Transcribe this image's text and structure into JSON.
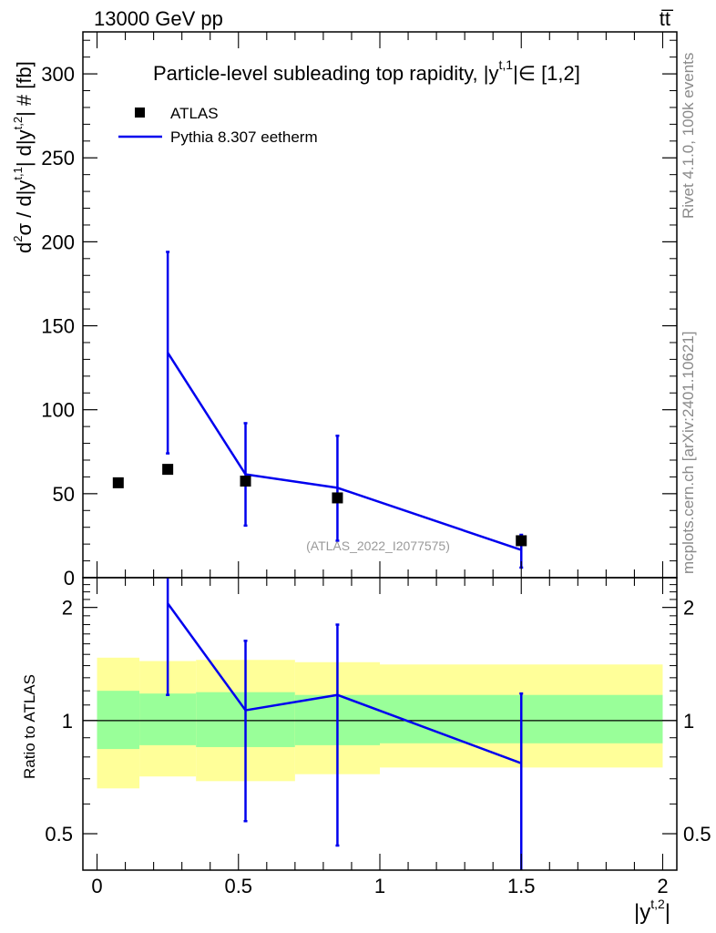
{
  "header": {
    "energy_label": "13000 GeV pp",
    "process_label": "tt̅"
  },
  "side_labels": {
    "rivet": "Rivet 4.1.0,  100k events",
    "mcplots": "mcplots.cern.ch [arXiv:2401.10621]"
  },
  "chart_data": [
    {
      "type": "scatter",
      "title": "Particle-level subleading top rapidity, |y^t,1| ∈ [1,2]",
      "title_parts": {
        "main": "Particle-level subleading top rapidity, |y",
        "sup": "t,1",
        "tail": "|∈ [1,2]"
      },
      "ylabel": "d²σ / d|y^t,1| d|y^t,2| # [fb]",
      "ylabel_parts": {
        "d": "d",
        "sup2": "2",
        "sigma": "σ / d|y",
        "supt1": "t,1",
        "mid": "| d|y",
        "supt2": "t,2",
        "tail": "| # [fb]"
      },
      "xlabel": "|y^t,2|",
      "xlabel_parts": {
        "main": "|y",
        "sup": "t,2",
        "tail": "|"
      },
      "xlim": [
        -0.05,
        2.05
      ],
      "ylim": [
        0,
        325
      ],
      "yticks": [
        0,
        50,
        100,
        150,
        200,
        250,
        300
      ],
      "xticks": [
        0,
        0.5,
        1,
        1.5,
        2
      ],
      "xtick_labels": [
        "0",
        "0.5",
        "1",
        "1.5",
        "2"
      ],
      "watermark": "(ATLAS_2022_I2077575)",
      "legend_position": "top-left",
      "series": [
        {
          "name": "ATLAS",
          "style": "markers",
          "color": "#000000",
          "x": [
            0.075,
            0.25,
            0.525,
            0.85,
            1.5
          ],
          "y": [
            56.5,
            64.5,
            57.5,
            47.5,
            22
          ]
        },
        {
          "name": "Pythia 8.307 eetherm",
          "style": "line",
          "color": "#0000ee",
          "x": [
            0.25,
            0.525,
            0.85,
            1.5
          ],
          "y": [
            134,
            61.5,
            53.5,
            16.5
          ],
          "err_low": [
            74,
            31,
            22,
            6
          ],
          "err_high": [
            194,
            92,
            84.5,
            25.5
          ]
        }
      ]
    },
    {
      "type": "line",
      "ylabel": "Ratio to ATLAS",
      "scale": "log",
      "ylim": [
        0.4,
        2.4
      ],
      "yticks_left": [
        0.5,
        1,
        2
      ],
      "ytick_labels_left": [
        "0.5",
        "1",
        "2"
      ],
      "yticks_right": [
        0.5,
        1,
        2
      ],
      "ytick_labels_right": [
        "0.5",
        "1",
        "2"
      ],
      "xlim": [
        -0.05,
        2.05
      ],
      "reference": 1.0,
      "bands": {
        "edges": [
          0,
          0.15,
          0.35,
          0.7,
          1.0,
          2.0
        ],
        "outer_low": [
          0.66,
          0.71,
          0.69,
          0.72,
          0.75
        ],
        "outer_high": [
          1.47,
          1.44,
          1.45,
          1.43,
          1.41
        ],
        "inner_low": [
          0.84,
          0.86,
          0.85,
          0.86,
          0.87
        ],
        "inner_high": [
          1.2,
          1.18,
          1.19,
          1.17,
          1.17
        ],
        "outer_color": "#ffff99",
        "inner_color": "#99ff99"
      },
      "series": [
        {
          "name": "Pythia 8.307 eetherm",
          "color": "#0000ee",
          "x": [
            0.25,
            0.525,
            0.85,
            1.5
          ],
          "y": [
            2.05,
            1.065,
            1.17,
            0.77
          ],
          "err_low": [
            1.17,
            0.54,
            0.465,
            0.3
          ],
          "err_high": [
            2.45,
            1.63,
            1.8,
            1.18
          ]
        }
      ]
    }
  ]
}
